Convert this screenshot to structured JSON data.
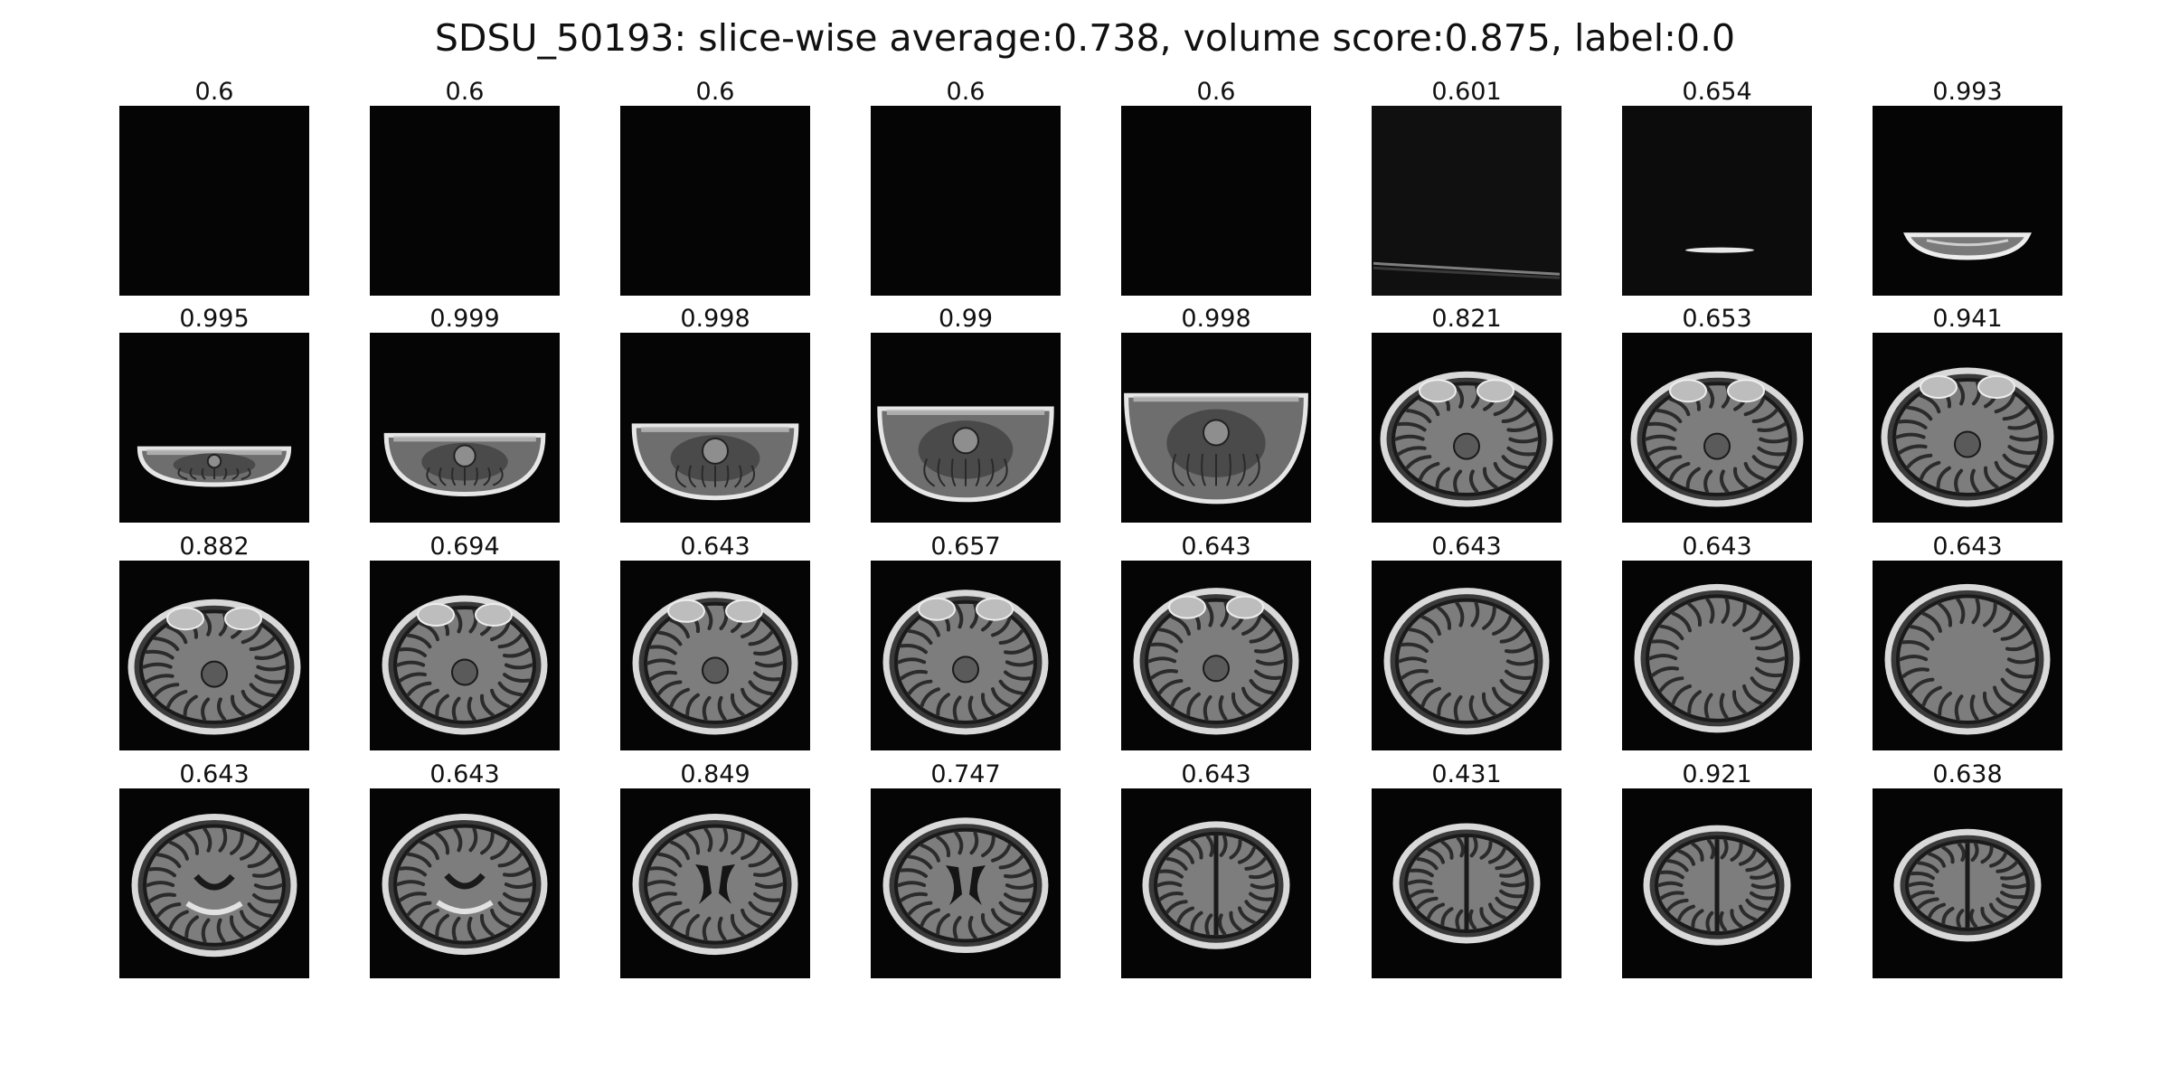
{
  "figure": {
    "title": "SDSU_50193: slice-wise average:0.738, volume score:0.875, label:0.0"
  },
  "slices": [
    {
      "score": "0.6",
      "image": "empty black slice"
    },
    {
      "score": "0.6",
      "image": "empty black slice"
    },
    {
      "score": "0.6",
      "image": "empty black slice"
    },
    {
      "score": "0.6",
      "image": "empty black slice"
    },
    {
      "score": "0.6",
      "image": "empty black slice"
    },
    {
      "score": "0.601",
      "image": "near-empty slice with thin bright edge at bottom"
    },
    {
      "score": "0.654",
      "image": "near-empty slice with small bright arc at bottom"
    },
    {
      "score": "0.993",
      "image": "slice with skull cap arc at bottom"
    },
    {
      "score": "0.995",
      "image": "lower head cross-section"
    },
    {
      "score": "0.999",
      "image": "lower head cross-section"
    },
    {
      "score": "0.998",
      "image": "lower head cross-section with cerebellum"
    },
    {
      "score": "0.99",
      "image": "lower head cross-section with cerebellum"
    },
    {
      "score": "0.998",
      "image": "lower head cross-section with cerebellum"
    },
    {
      "score": "0.821",
      "image": "head cross-section with cerebellum and temporal bones"
    },
    {
      "score": "0.653",
      "image": "head cross-section with cerebellum and temporal bones"
    },
    {
      "score": "0.941",
      "image": "head cross-section with brainstem"
    },
    {
      "score": "0.882",
      "image": "head cross-section with brainstem"
    },
    {
      "score": "0.694",
      "image": "head cross-section with brainstem and temporal lobes"
    },
    {
      "score": "0.643",
      "image": "axial brain slice"
    },
    {
      "score": "0.657",
      "image": "axial brain slice"
    },
    {
      "score": "0.643",
      "image": "axial brain slice"
    },
    {
      "score": "0.643",
      "image": "axial brain slice"
    },
    {
      "score": "0.643",
      "image": "axial brain slice"
    },
    {
      "score": "0.643",
      "image": "axial brain slice"
    },
    {
      "score": "0.643",
      "image": "axial brain slice with ventricles"
    },
    {
      "score": "0.643",
      "image": "axial brain slice with ventricles"
    },
    {
      "score": "0.849",
      "image": "axial brain slice with lateral ventricles"
    },
    {
      "score": "0.747",
      "image": "axial brain slice with lateral ventricles"
    },
    {
      "score": "0.643",
      "image": "upper axial brain slice"
    },
    {
      "score": "0.431",
      "image": "upper axial brain slice"
    },
    {
      "score": "0.921",
      "image": "upper axial brain slice"
    },
    {
      "score": "0.638",
      "image": "upper axial brain slice"
    }
  ]
}
